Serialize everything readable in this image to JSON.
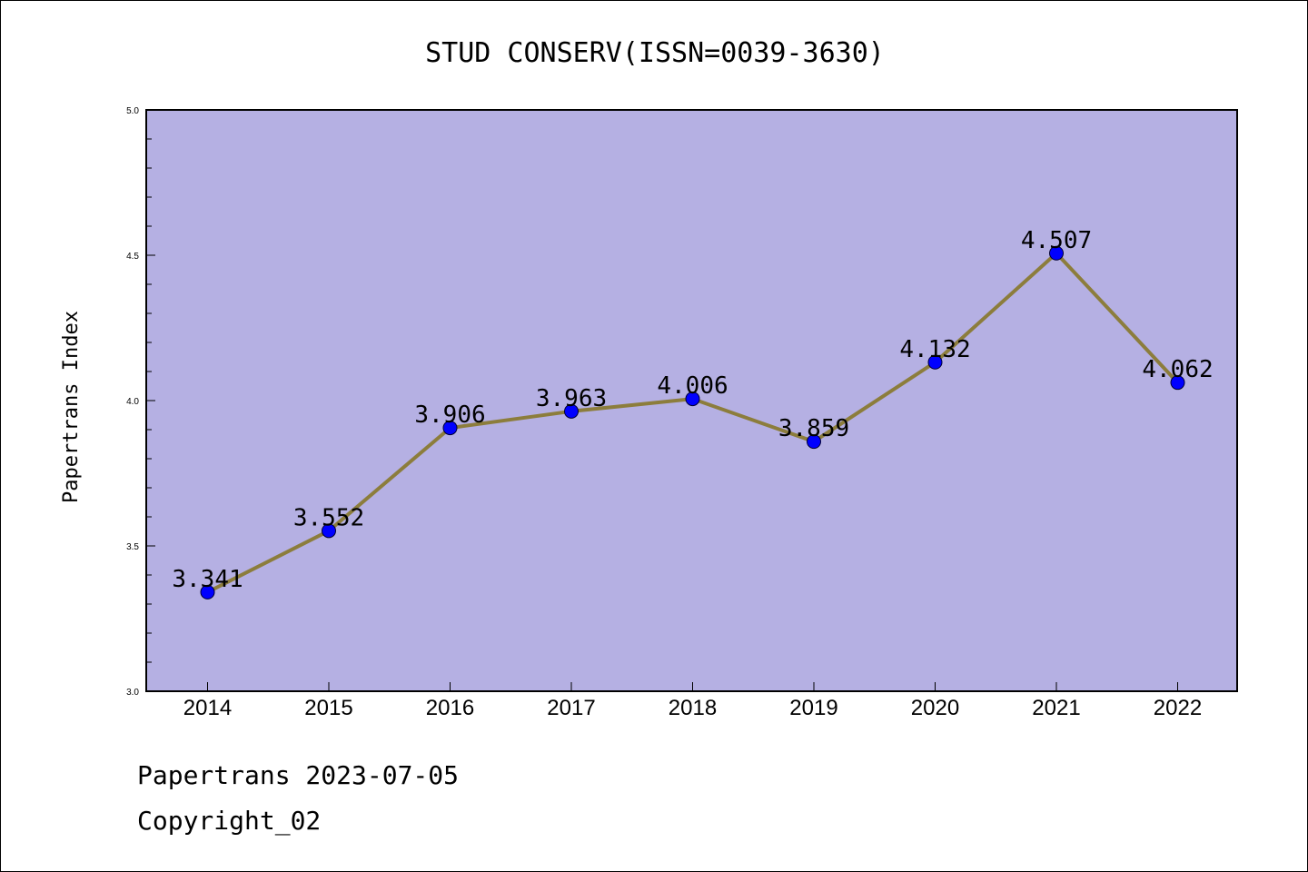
{
  "footer": {
    "line1": "Papertrans 2023-07-05",
    "line2": "Copyright_02"
  },
  "chart_data": {
    "type": "line",
    "title": "STUD CONSERV(ISSN=0039-3630)",
    "ylabel": "Papertrans Index",
    "xlabel": "",
    "categories": [
      "2014",
      "2015",
      "2016",
      "2017",
      "2018",
      "2019",
      "2020",
      "2021",
      "2022"
    ],
    "values": [
      3.341,
      3.552,
      3.906,
      3.963,
      4.006,
      3.859,
      4.132,
      4.507,
      4.062
    ],
    "data_labels": [
      "3.341",
      "3.552",
      "3.906",
      "3.963",
      "4.006",
      "3.859",
      "4.132",
      "4.507",
      "4.062"
    ],
    "ylim": [
      3.0,
      5.0
    ],
    "yticks": [
      "3.0",
      "3.5",
      "4.0",
      "4.5",
      "5.0"
    ],
    "grid": false,
    "legend": "none",
    "colors": {
      "plot_background": "#b5b0e3",
      "line": "#8c7d3c",
      "marker": "#0000ff"
    }
  }
}
